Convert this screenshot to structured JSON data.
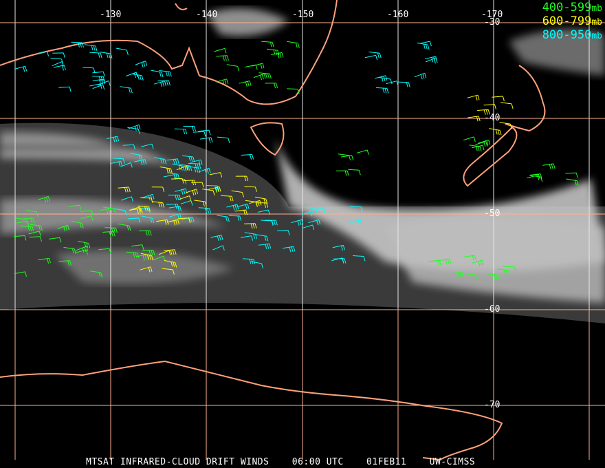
{
  "title": "MTSAT INFRARED-CLOUD DRIFT WINDS",
  "time": "06:00 UTC",
  "date": "01FEB11",
  "source": "UW-CIMSS",
  "legend": [
    {
      "range": "400-599",
      "unit": "mb",
      "color": "#22ff22"
    },
    {
      "range": "600-799",
      "unit": "mb",
      "color": "#ffff00"
    },
    {
      "range": "800-950",
      "unit": "mb",
      "color": "#00ffff"
    }
  ],
  "longitude_labels": [
    "-130",
    "-140",
    "-150",
    "-160",
    "-170"
  ],
  "latitude_labels": [
    "-30",
    "-40",
    "-50",
    "-60",
    "-70"
  ],
  "colors": {
    "coastline": "#ffa07a",
    "grid": "#ffb090",
    "background": "#000000"
  }
}
